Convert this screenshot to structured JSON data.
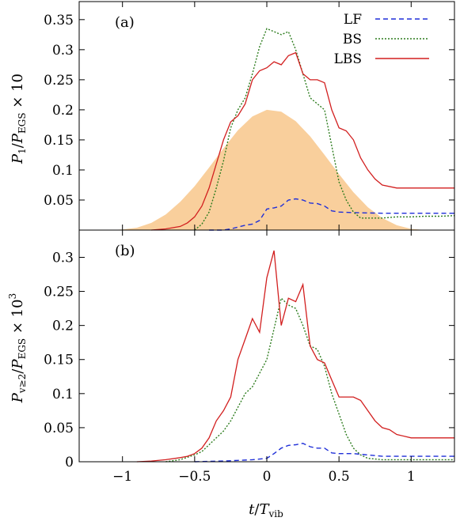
{
  "chart_data": [
    {
      "type": "line",
      "panel_label": "(a)",
      "ylabel": "P_1/P_EGS × 10",
      "ylabel_parts": {
        "main": "P",
        "sub1": "1",
        "mid": "/",
        "main2": "P",
        "sub2": "EGS",
        "suffix": " × 10"
      },
      "xlim": [
        -1.3,
        1.3
      ],
      "ylim": [
        0,
        0.38
      ],
      "yticks": [
        0.05,
        0.1,
        0.15,
        0.2,
        0.25,
        0.3,
        0.35
      ],
      "ytick_labels": [
        "0.05",
        "0.1",
        "0.15",
        "0.2",
        "0.25",
        "0.3",
        "0.35"
      ],
      "legend": {
        "placement": "top-right",
        "entries": [
          "LF",
          "BS",
          "LBS"
        ]
      },
      "pulse_envelope": {
        "color": "#f9cf9c",
        "x": [
          -1.3,
          -1.2,
          -1.1,
          -1.0,
          -0.9,
          -0.8,
          -0.7,
          -0.6,
          -0.5,
          -0.4,
          -0.3,
          -0.2,
          -0.1,
          0.0,
          0.1,
          0.2,
          0.3,
          0.4,
          0.5,
          0.6,
          0.7,
          0.8,
          0.9,
          1.0,
          1.1,
          1.2,
          1.3
        ],
        "y": [
          0,
          0,
          0,
          0.001,
          0.004,
          0.012,
          0.026,
          0.047,
          0.073,
          0.104,
          0.136,
          0.166,
          0.189,
          0.2,
          0.197,
          0.181,
          0.156,
          0.125,
          0.093,
          0.063,
          0.038,
          0.02,
          0.008,
          0.002,
          0,
          0,
          0
        ]
      },
      "series": [
        {
          "name": "LF",
          "color": "#1f2fd8",
          "dash": "6,4",
          "x": [
            -0.4,
            -0.3,
            -0.25,
            -0.2,
            -0.15,
            -0.1,
            -0.05,
            0.0,
            0.05,
            0.1,
            0.15,
            0.2,
            0.25,
            0.3,
            0.35,
            0.4,
            0.45,
            0.5,
            0.6,
            0.8,
            1.0,
            1.2,
            1.3
          ],
          "y": [
            0,
            0.0,
            0.002,
            0.005,
            0.008,
            0.01,
            0.016,
            0.035,
            0.037,
            0.04,
            0.05,
            0.052,
            0.05,
            0.045,
            0.044,
            0.04,
            0.032,
            0.03,
            0.029,
            0.028,
            0.028,
            0.028,
            0.028
          ]
        },
        {
          "name": "BS",
          "color": "#2e7d1f",
          "dash": "2,2",
          "x": [
            -0.5,
            -0.45,
            -0.4,
            -0.35,
            -0.3,
            -0.25,
            -0.2,
            -0.15,
            -0.1,
            -0.05,
            0.0,
            0.05,
            0.1,
            0.15,
            0.2,
            0.25,
            0.3,
            0.35,
            0.4,
            0.45,
            0.5,
            0.55,
            0.6,
            0.65,
            0.7,
            0.75,
            0.8,
            0.9,
            1.0,
            1.1,
            1.2,
            1.3
          ],
          "y": [
            0,
            0.01,
            0.03,
            0.07,
            0.115,
            0.17,
            0.2,
            0.22,
            0.26,
            0.305,
            0.335,
            0.33,
            0.325,
            0.33,
            0.3,
            0.26,
            0.22,
            0.21,
            0.2,
            0.14,
            0.08,
            0.05,
            0.03,
            0.02,
            0.02,
            0.02,
            0.02,
            0.022,
            0.022,
            0.023,
            0.023,
            0.024
          ]
        },
        {
          "name": "LBS",
          "color": "#d21f1f",
          "dash": "",
          "x": [
            -0.8,
            -0.7,
            -0.6,
            -0.55,
            -0.5,
            -0.45,
            -0.4,
            -0.35,
            -0.3,
            -0.25,
            -0.2,
            -0.15,
            -0.1,
            -0.05,
            0.0,
            0.05,
            0.1,
            0.15,
            0.2,
            0.25,
            0.3,
            0.35,
            0.4,
            0.45,
            0.5,
            0.55,
            0.6,
            0.65,
            0.7,
            0.75,
            0.8,
            0.9,
            1.0,
            1.1,
            1.2,
            1.3
          ],
          "y": [
            0,
            0.002,
            0.006,
            0.012,
            0.022,
            0.04,
            0.07,
            0.11,
            0.15,
            0.18,
            0.19,
            0.21,
            0.25,
            0.265,
            0.27,
            0.28,
            0.275,
            0.29,
            0.295,
            0.26,
            0.25,
            0.25,
            0.245,
            0.2,
            0.17,
            0.165,
            0.15,
            0.12,
            0.1,
            0.085,
            0.075,
            0.07,
            0.07,
            0.07,
            0.07,
            0.07
          ]
        }
      ]
    },
    {
      "type": "line",
      "panel_label": "(b)",
      "ylabel": "P_v≥2/P_EGS × 10^3",
      "ylabel_parts": {
        "main": "P",
        "sub1": "v≥2",
        "mid": "/",
        "main2": "P",
        "sub2": "EGS",
        "suffix": " × 10",
        "sup": "3"
      },
      "xlabel": "t/T_vib",
      "xlabel_parts": {
        "main": "t",
        "mid": "/",
        "main2": "T",
        "sub": "vib"
      },
      "xlim": [
        -1.3,
        1.3
      ],
      "ylim": [
        0,
        0.34
      ],
      "xticks": [
        -1,
        -0.5,
        0,
        0.5,
        1
      ],
      "xtick_labels": [
        "−1",
        "−0.5",
        "0",
        "0.5",
        "1"
      ],
      "yticks": [
        0,
        0.05,
        0.1,
        0.15,
        0.2,
        0.25,
        0.3
      ],
      "ytick_labels": [
        "0",
        "0.05",
        "0.1",
        "0.15",
        "0.2",
        "0.25",
        "0.3"
      ],
      "series": [
        {
          "name": "LF",
          "color": "#1f2fd8",
          "dash": "6,4",
          "x": [
            -0.5,
            -0.3,
            -0.2,
            -0.1,
            -0.05,
            0.0,
            0.05,
            0.1,
            0.15,
            0.2,
            0.25,
            0.3,
            0.35,
            0.4,
            0.45,
            0.5,
            0.6,
            0.8,
            1.0,
            1.2,
            1.3
          ],
          "y": [
            0,
            0.001,
            0.002,
            0.003,
            0.004,
            0.005,
            0.012,
            0.02,
            0.024,
            0.025,
            0.027,
            0.022,
            0.02,
            0.02,
            0.013,
            0.012,
            0.012,
            0.008,
            0.008,
            0.008,
            0.008
          ]
        },
        {
          "name": "BS",
          "color": "#2e7d1f",
          "dash": "2,2",
          "x": [
            -0.7,
            -0.6,
            -0.5,
            -0.45,
            -0.4,
            -0.35,
            -0.3,
            -0.25,
            -0.2,
            -0.15,
            -0.1,
            -0.05,
            0.0,
            0.05,
            0.1,
            0.15,
            0.2,
            0.25,
            0.3,
            0.35,
            0.4,
            0.45,
            0.5,
            0.55,
            0.6,
            0.65,
            0.7,
            0.8,
            0.9,
            1.0,
            1.1,
            1.2,
            1.3
          ],
          "y": [
            0,
            0.003,
            0.01,
            0.015,
            0.025,
            0.035,
            0.045,
            0.06,
            0.08,
            0.1,
            0.11,
            0.13,
            0.15,
            0.195,
            0.24,
            0.23,
            0.225,
            0.2,
            0.17,
            0.165,
            0.14,
            0.1,
            0.07,
            0.04,
            0.02,
            0.01,
            0.005,
            0.003,
            0.003,
            0.003,
            0.003,
            0.003,
            0.003
          ]
        },
        {
          "name": "LBS",
          "color": "#d21f1f",
          "dash": "",
          "x": [
            -0.9,
            -0.8,
            -0.7,
            -0.6,
            -0.55,
            -0.5,
            -0.45,
            -0.4,
            -0.35,
            -0.3,
            -0.25,
            -0.2,
            -0.15,
            -0.1,
            -0.05,
            0.0,
            0.05,
            0.1,
            0.15,
            0.2,
            0.25,
            0.3,
            0.35,
            0.4,
            0.45,
            0.5,
            0.55,
            0.6,
            0.65,
            0.7,
            0.75,
            0.8,
            0.85,
            0.9,
            1.0,
            1.1,
            1.2,
            1.3
          ],
          "y": [
            0,
            0.001,
            0.003,
            0.006,
            0.008,
            0.012,
            0.02,
            0.035,
            0.06,
            0.075,
            0.095,
            0.15,
            0.18,
            0.21,
            0.19,
            0.27,
            0.31,
            0.2,
            0.24,
            0.235,
            0.26,
            0.17,
            0.15,
            0.145,
            0.12,
            0.095,
            0.095,
            0.095,
            0.09,
            0.075,
            0.06,
            0.05,
            0.047,
            0.04,
            0.035,
            0.035,
            0.035,
            0.035
          ]
        }
      ]
    }
  ]
}
